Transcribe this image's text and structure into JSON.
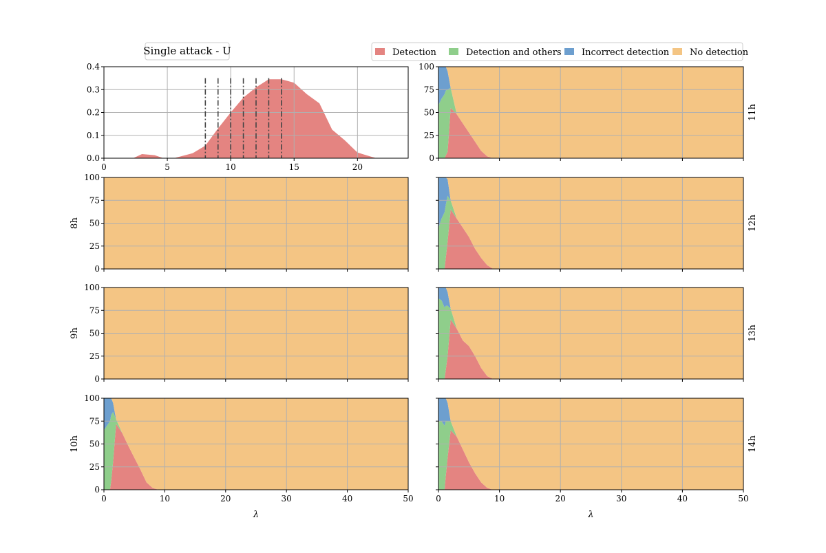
{
  "colors": {
    "detection": "#e48481",
    "detection_and_others": "#8fce8b",
    "incorrect_detection": "#6d9fcf",
    "no_detection": "#f4c584",
    "grid": "#b0b0b0"
  },
  "chart_data": [
    {
      "type": "area",
      "title": "Single attack - U",
      "xlim": [
        0,
        24
      ],
      "ylim": [
        0,
        0.4
      ],
      "xticks": [
        "0",
        "5",
        "10",
        "15",
        "20"
      ],
      "yticks": [
        "0.0",
        "0.1",
        "0.2",
        "0.3",
        "0.4"
      ],
      "grid": true,
      "series": [
        {
          "x": [
            0,
            2.3,
            3,
            4,
            4.7,
            5.5,
            6,
            7,
            8,
            9,
            10,
            11,
            12,
            13,
            14,
            15,
            16,
            17,
            18,
            19,
            20,
            21,
            21.5,
            24
          ],
          "values": [
            0,
            0,
            0.018,
            0.013,
            0,
            0,
            0.007,
            0.022,
            0.055,
            0.13,
            0.2,
            0.265,
            0.31,
            0.345,
            0.345,
            0.33,
            0.28,
            0.24,
            0.125,
            0.078,
            0.025,
            0.008,
            0,
            0
          ]
        }
      ],
      "vlines": [
        8,
        9,
        10,
        11,
        12,
        13,
        14
      ],
      "vline_top": 0.35
    },
    {
      "type": "area",
      "row_label": "11h",
      "xlim": [
        0,
        50
      ],
      "ylim": [
        0,
        100
      ],
      "xticks": [],
      "yticks": [
        "0",
        "25",
        "50",
        "75",
        "100"
      ],
      "grid": true,
      "stacked_percent": true,
      "x": [
        0,
        0.5,
        1,
        1.2,
        1.5,
        2,
        3,
        4,
        5,
        6,
        7,
        8,
        9,
        50
      ],
      "series": [
        {
          "name": "Detection",
          "values": [
            0,
            0,
            0,
            3,
            7,
            55,
            48,
            38,
            28,
            18,
            8,
            2,
            0,
            0
          ]
        },
        {
          "name": "Detection and others",
          "values": [
            58,
            65,
            70,
            71,
            68,
            22,
            0,
            0,
            0,
            0,
            0,
            0,
            0,
            0
          ]
        },
        {
          "name": "Incorrect detection",
          "values": [
            42,
            35,
            30,
            26,
            20,
            0,
            0,
            0,
            0,
            0,
            0,
            0,
            0,
            0
          ]
        },
        {
          "name": "No detection",
          "values": [
            0,
            0,
            0,
            0,
            5,
            23,
            52,
            62,
            72,
            82,
            92,
            98,
            100,
            100
          ]
        }
      ]
    },
    {
      "type": "area",
      "row_label": "8h",
      "xlim": [
        0,
        50
      ],
      "ylim": [
        0,
        100
      ],
      "xticks": [],
      "yticks": [
        "0",
        "25",
        "50",
        "75",
        "100"
      ],
      "grid": true,
      "stacked_percent": true,
      "x": [
        0,
        50
      ],
      "series": [
        {
          "name": "Detection",
          "values": [
            0,
            0
          ]
        },
        {
          "name": "Detection and others",
          "values": [
            0,
            0
          ]
        },
        {
          "name": "Incorrect detection",
          "values": [
            0,
            0
          ]
        },
        {
          "name": "No detection",
          "values": [
            100,
            100
          ]
        }
      ]
    },
    {
      "type": "area",
      "row_label": "12h",
      "xlim": [
        0,
        50
      ],
      "ylim": [
        0,
        100
      ],
      "xticks": [],
      "yticks": [
        "0",
        "25",
        "50",
        "75",
        "100"
      ],
      "grid": true,
      "stacked_percent": true,
      "x": [
        0,
        0.5,
        1,
        1.2,
        1.5,
        2,
        3,
        4,
        5,
        6,
        7,
        8,
        9,
        50
      ],
      "series": [
        {
          "name": "Detection",
          "values": [
            0,
            0,
            0,
            12,
            30,
            65,
            55,
            45,
            35,
            22,
            12,
            4,
            0,
            0
          ]
        },
        {
          "name": "Detection and others",
          "values": [
            45,
            55,
            62,
            58,
            50,
            10,
            0,
            0,
            0,
            0,
            0,
            0,
            0,
            0
          ]
        },
        {
          "name": "Incorrect detection",
          "values": [
            55,
            45,
            38,
            30,
            18,
            0,
            0,
            0,
            0,
            0,
            0,
            0,
            0,
            0
          ]
        },
        {
          "name": "No detection",
          "values": [
            0,
            0,
            0,
            0,
            2,
            25,
            45,
            55,
            65,
            78,
            88,
            96,
            100,
            100
          ]
        }
      ]
    },
    {
      "type": "area",
      "row_label": "9h",
      "xlim": [
        0,
        50
      ],
      "ylim": [
        0,
        100
      ],
      "xticks": [],
      "yticks": [
        "0",
        "25",
        "50",
        "75",
        "100"
      ],
      "grid": true,
      "stacked_percent": true,
      "x": [
        0,
        50
      ],
      "series": [
        {
          "name": "Detection",
          "values": [
            0,
            0
          ]
        },
        {
          "name": "Detection and others",
          "values": [
            0,
            0
          ]
        },
        {
          "name": "Incorrect detection",
          "values": [
            0,
            0
          ]
        },
        {
          "name": "No detection",
          "values": [
            100,
            100
          ]
        }
      ]
    },
    {
      "type": "area",
      "row_label": "13h",
      "xlim": [
        0,
        50
      ],
      "ylim": [
        0,
        100
      ],
      "xticks": [],
      "yticks": [
        "0",
        "25",
        "50",
        "75",
        "100"
      ],
      "grid": true,
      "stacked_percent": true,
      "x": [
        0,
        0.5,
        1,
        1.2,
        1.5,
        2,
        3,
        4,
        5,
        6,
        7,
        8,
        9,
        50
      ],
      "series": [
        {
          "name": "Detection",
          "values": [
            0,
            0,
            0,
            10,
            25,
            65,
            55,
            42,
            36,
            25,
            12,
            3,
            0,
            0
          ]
        },
        {
          "name": "Detection and others",
          "values": [
            88,
            86,
            78,
            70,
            55,
            12,
            0,
            0,
            0,
            0,
            0,
            0,
            0,
            0
          ]
        },
        {
          "name": "Incorrect detection",
          "values": [
            12,
            14,
            22,
            20,
            15,
            0,
            0,
            0,
            0,
            0,
            0,
            0,
            0,
            0
          ]
        },
        {
          "name": "No detection",
          "values": [
            0,
            0,
            0,
            0,
            5,
            23,
            45,
            58,
            64,
            75,
            88,
            97,
            100,
            100
          ]
        }
      ]
    },
    {
      "type": "area",
      "row_label": "10h",
      "xlim": [
        0,
        50
      ],
      "ylim": [
        0,
        100
      ],
      "xticks": [
        "0",
        "10",
        "20",
        "30",
        "40",
        "50"
      ],
      "yticks": [
        "0",
        "25",
        "50",
        "75",
        "100"
      ],
      "xlabel": "λ",
      "grid": true,
      "stacked_percent": true,
      "x": [
        0,
        0.5,
        1,
        1.2,
        1.5,
        2,
        3,
        4,
        5,
        6,
        7,
        8,
        9,
        50
      ],
      "series": [
        {
          "name": "Detection",
          "values": [
            0,
            0,
            0,
            10,
            30,
            72,
            62,
            48,
            35,
            22,
            8,
            2,
            0,
            0
          ]
        },
        {
          "name": "Detection and others",
          "values": [
            65,
            70,
            75,
            72,
            55,
            5,
            0,
            0,
            0,
            0,
            0,
            0,
            0,
            0
          ]
        },
        {
          "name": "Incorrect detection",
          "values": [
            35,
            30,
            25,
            18,
            10,
            0,
            0,
            0,
            0,
            0,
            0,
            0,
            0,
            0
          ]
        },
        {
          "name": "No detection",
          "values": [
            0,
            0,
            0,
            0,
            5,
            23,
            38,
            52,
            65,
            78,
            92,
            98,
            100,
            100
          ]
        }
      ]
    },
    {
      "type": "area",
      "row_label": "14h",
      "xlim": [
        0,
        50
      ],
      "ylim": [
        0,
        100
      ],
      "xticks": [
        "0",
        "10",
        "20",
        "30",
        "40",
        "50"
      ],
      "yticks": [
        "0",
        "25",
        "50",
        "75",
        "100"
      ],
      "xlabel": "λ",
      "grid": true,
      "stacked_percent": true,
      "x": [
        0,
        0.5,
        1,
        1.2,
        1.5,
        2,
        3,
        4,
        5,
        6,
        7,
        8,
        9,
        50
      ],
      "series": [
        {
          "name": "Detection",
          "values": [
            0,
            0,
            0,
            15,
            35,
            65,
            58,
            44,
            30,
            18,
            8,
            2,
            0,
            0
          ]
        },
        {
          "name": "Detection and others",
          "values": [
            75,
            75,
            70,
            60,
            40,
            10,
            0,
            0,
            0,
            0,
            0,
            0,
            0,
            0
          ]
        },
        {
          "name": "Incorrect detection",
          "values": [
            25,
            25,
            30,
            25,
            20,
            0,
            0,
            0,
            0,
            0,
            0,
            0,
            0,
            0
          ]
        },
        {
          "name": "No detection",
          "values": [
            0,
            0,
            0,
            0,
            5,
            25,
            42,
            56,
            70,
            82,
            92,
            98,
            100,
            100
          ]
        }
      ]
    }
  ],
  "legend": {
    "placement": "top-right",
    "items": [
      {
        "label": "Detection",
        "color": "#e48481"
      },
      {
        "label": "Detection and others",
        "color": "#8fce8b"
      },
      {
        "label": "Incorrect detection",
        "color": "#6d9fcf"
      },
      {
        "label": "No detection",
        "color": "#f4c584"
      }
    ]
  }
}
